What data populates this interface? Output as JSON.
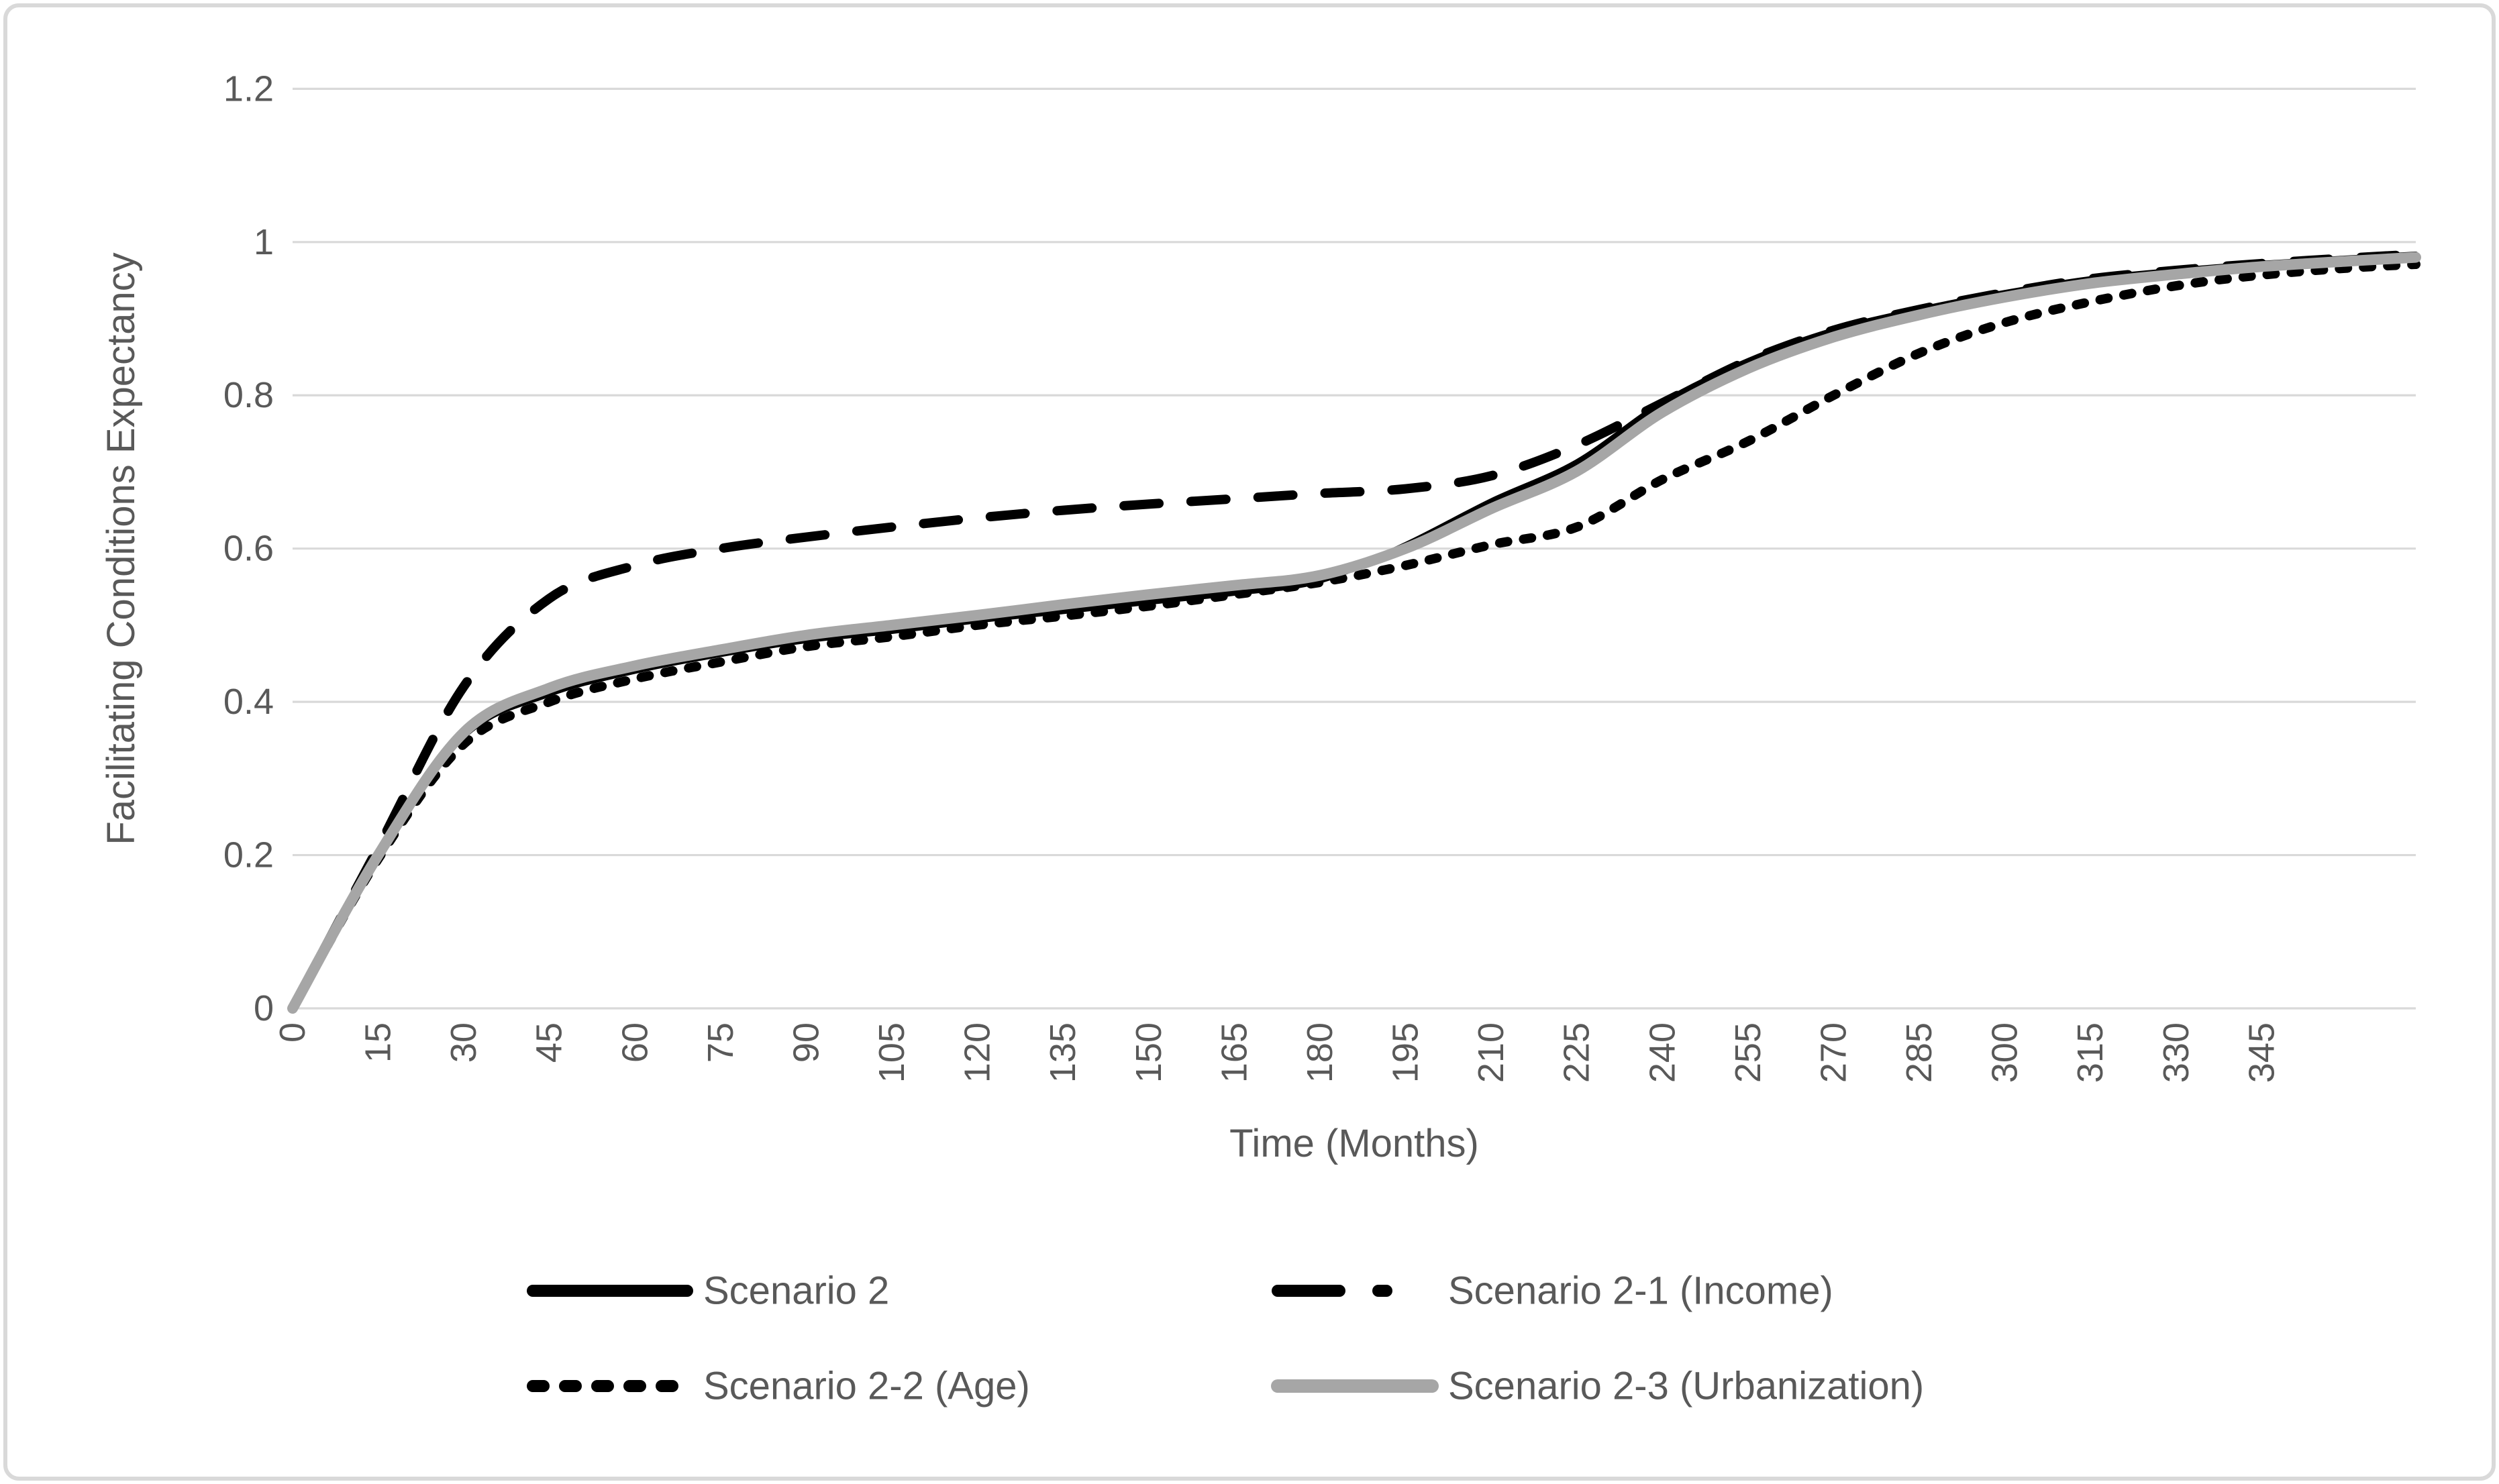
{
  "frame": {
    "background": "#ffffff",
    "border_color": "#d9d9d9",
    "gridline_color": "#d9d9d9",
    "text_color": "#595959"
  },
  "chart_data": {
    "type": "line",
    "title": "",
    "xlabel": "Time (Months)",
    "ylabel": "Facilitating Conditions Expectancy",
    "ylim": [
      0,
      1.2
    ],
    "xlim_months": [
      0,
      372
    ],
    "grid": "horizontal",
    "legend_position": "bottom",
    "y_ticks": [
      {
        "value": 0,
        "label": "0"
      },
      {
        "value": 0.2,
        "label": "0.2"
      },
      {
        "value": 0.4,
        "label": "0.4"
      },
      {
        "value": 0.6,
        "label": "0.6"
      },
      {
        "value": 0.8,
        "label": "0.8"
      },
      {
        "value": 1,
        "label": "1"
      },
      {
        "value": 1.2,
        "label": "1.2"
      }
    ],
    "x_ticks": [
      "0",
      "15",
      "30",
      "45",
      "60",
      "75",
      "90",
      "105",
      "120",
      "135",
      "150",
      "165",
      "180",
      "195",
      "210",
      "225",
      "240",
      "255",
      "270",
      "285",
      "300",
      "315",
      "330",
      "345"
    ],
    "x_tick_step_months": 15,
    "months": [
      0,
      15,
      30,
      45,
      60,
      75,
      90,
      105,
      120,
      135,
      150,
      165,
      180,
      195,
      210,
      225,
      240,
      255,
      270,
      285,
      300,
      315,
      330,
      345,
      360,
      372
    ],
    "series": [
      {
        "name": "Scenario 2",
        "style": "solid",
        "color": "#000000",
        "width": 4,
        "values": [
          0,
          0.2,
          0.355,
          0.41,
          0.44,
          0.462,
          0.48,
          0.492,
          0.506,
          0.518,
          0.53,
          0.542,
          0.558,
          0.605,
          0.662,
          0.713,
          0.79,
          0.845,
          0.885,
          0.912,
          0.934,
          0.952,
          0.963,
          0.972,
          0.979,
          0.984
        ]
      },
      {
        "name": "Scenario 2-1 (Income)",
        "style": "long-dash",
        "color": "#000000",
        "width": 7,
        "values": [
          0,
          0.21,
          0.42,
          0.535,
          0.578,
          0.6,
          0.615,
          0.628,
          0.64,
          0.65,
          0.658,
          0.665,
          0.672,
          0.678,
          0.695,
          0.735,
          0.79,
          0.845,
          0.885,
          0.912,
          0.934,
          0.952,
          0.963,
          0.972,
          0.979,
          0.984
        ]
      },
      {
        "name": "Scenario 2-2 (Age)",
        "style": "short-dash",
        "color": "#000000",
        "width": 7,
        "values": [
          0,
          0.195,
          0.345,
          0.4,
          0.43,
          0.452,
          0.472,
          0.485,
          0.5,
          0.512,
          0.525,
          0.54,
          0.556,
          0.578,
          0.605,
          0.628,
          0.69,
          0.74,
          0.8,
          0.855,
          0.895,
          0.922,
          0.943,
          0.957,
          0.966,
          0.971
        ]
      },
      {
        "name": "Scenario 2-3 (Urbanization)",
        "style": "solid",
        "color": "#a6a6a6",
        "width": 8,
        "values": [
          0,
          0.2,
          0.36,
          0.418,
          0.447,
          0.468,
          0.487,
          0.5,
          0.513,
          0.527,
          0.54,
          0.552,
          0.565,
          0.6,
          0.652,
          0.701,
          0.778,
          0.835,
          0.876,
          0.905,
          0.928,
          0.946,
          0.958,
          0.968,
          0.975,
          0.98
        ]
      }
    ],
    "legend": [
      {
        "label": "Scenario 2",
        "swatch": "solid-black"
      },
      {
        "label": "Scenario 2-1 (Income)",
        "swatch": "long-dash-black"
      },
      {
        "label": "Scenario 2-2 (Age)",
        "swatch": "short-dash-black"
      },
      {
        "label": "Scenario 2-3 (Urbanization)",
        "swatch": "solid-gray"
      }
    ]
  }
}
